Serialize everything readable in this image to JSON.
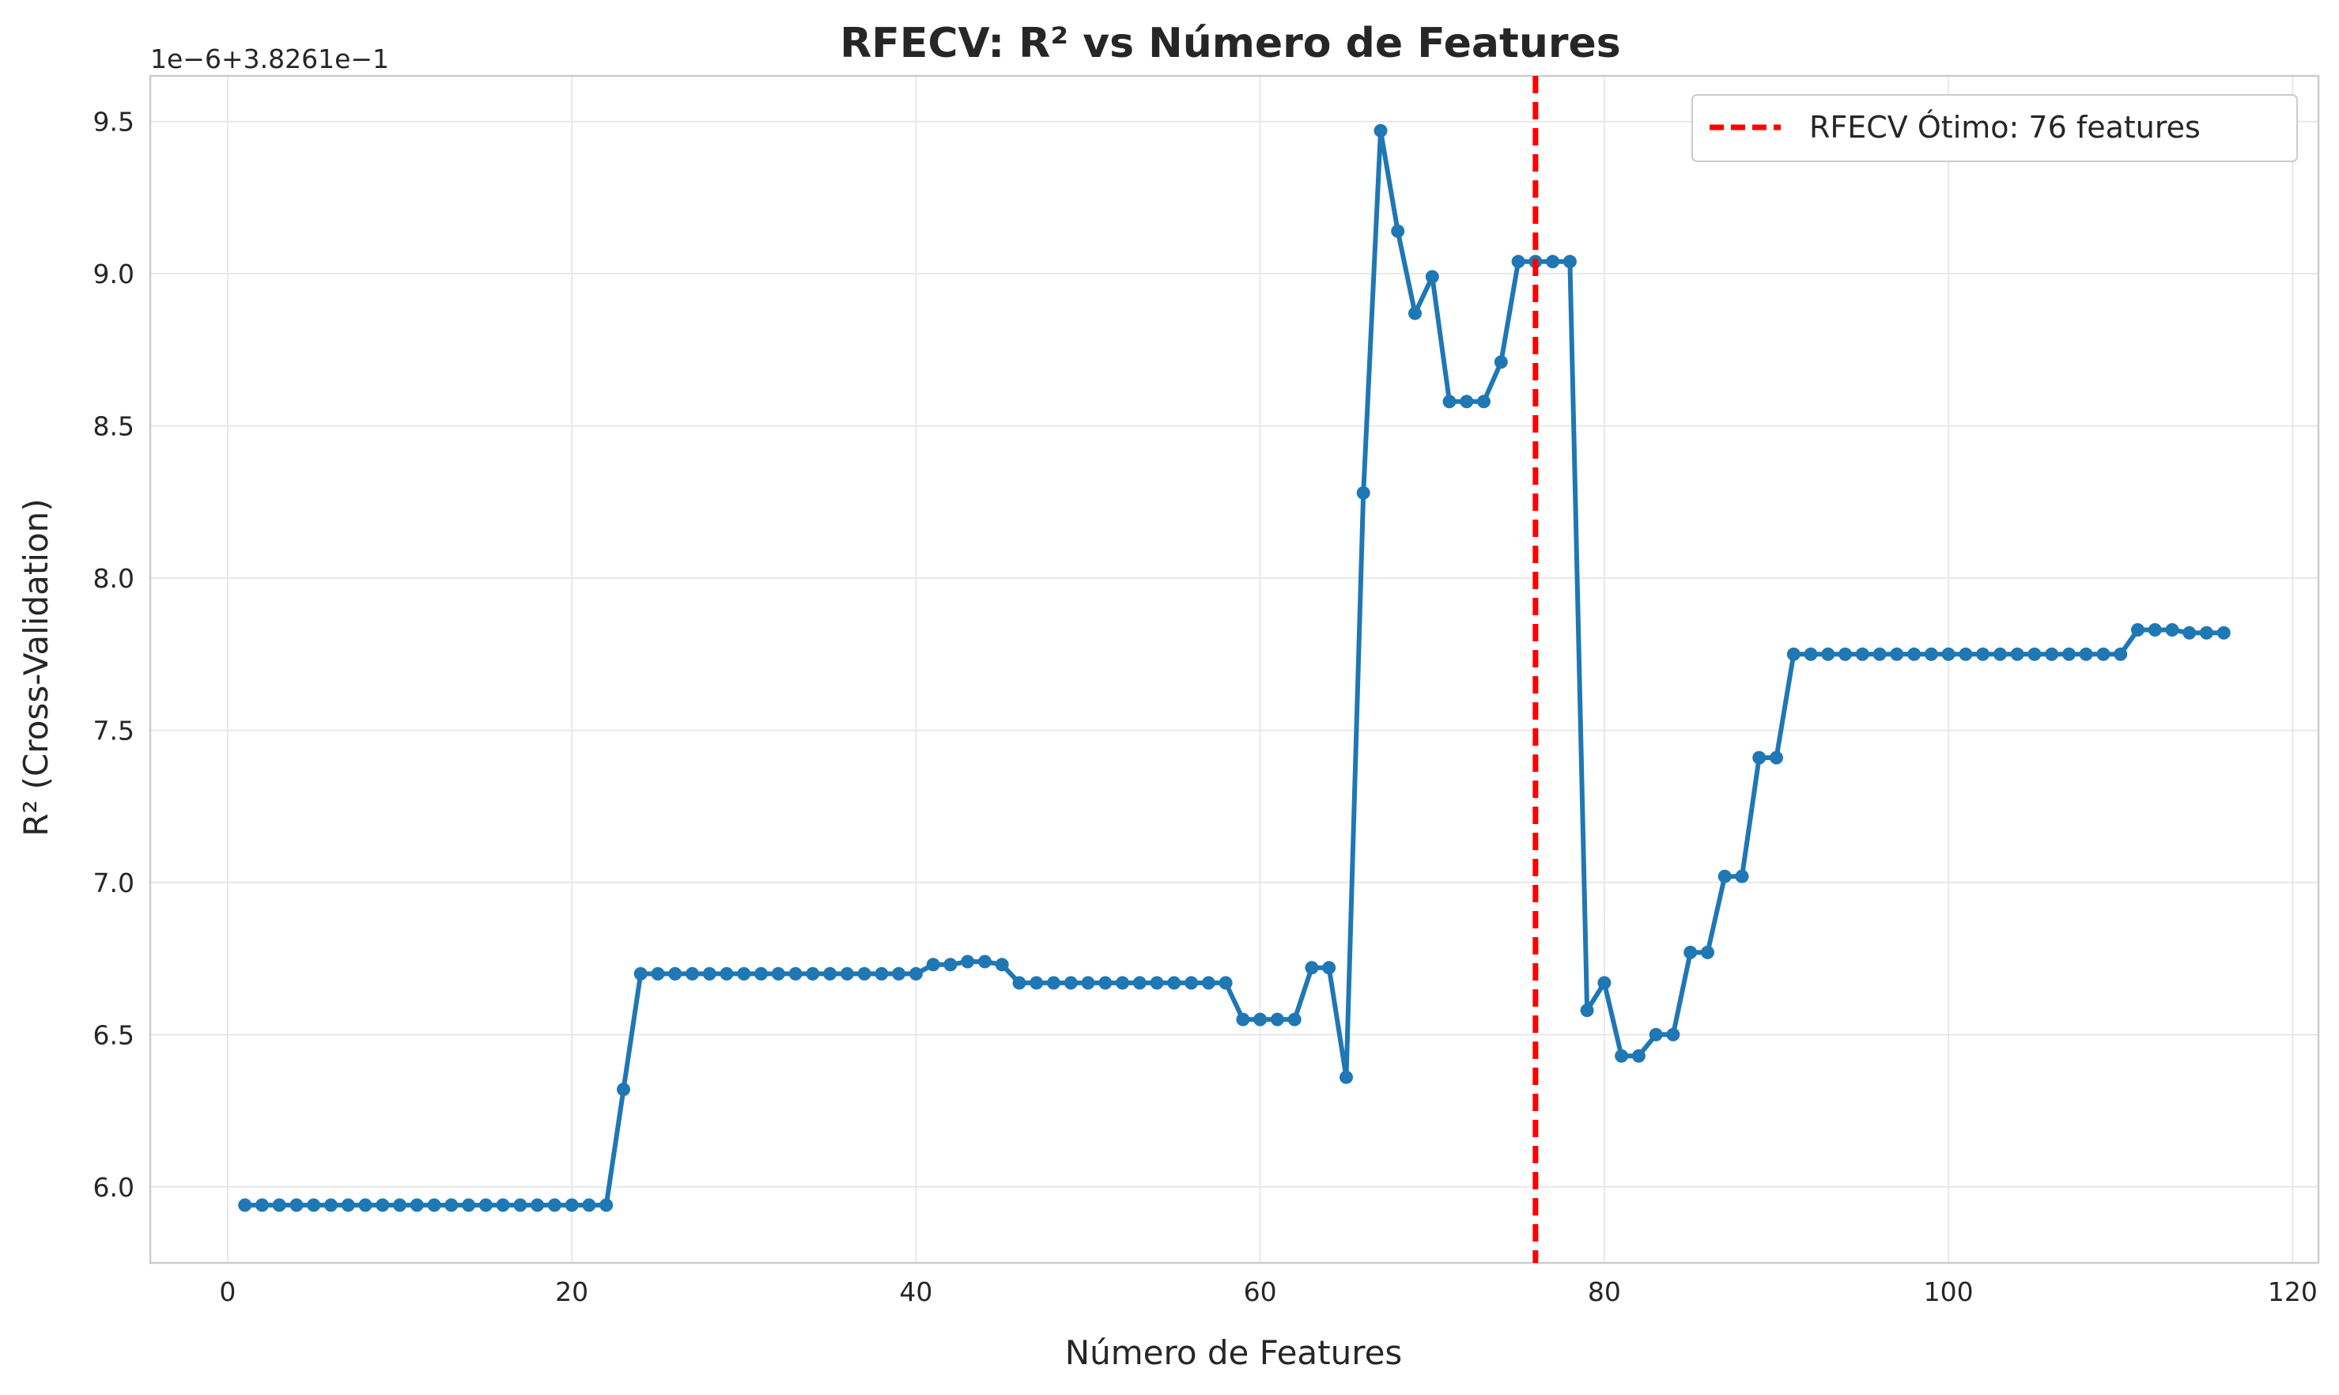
{
  "chart_data": {
    "type": "line",
    "title": "RFECV: R² vs Número de Features",
    "xlabel": "Número de Features",
    "ylabel": "R² (Cross-Validation)",
    "y_offset_label": "1e−6+3.8261e−1",
    "xlim": [
      -4.5,
      121.5
    ],
    "ylim": [
      5.75,
      9.65
    ],
    "xticks": [
      0,
      20,
      40,
      60,
      80,
      100,
      120
    ],
    "xtick_labels": [
      "0",
      "20",
      "40",
      "60",
      "80",
      "100",
      "120"
    ],
    "yticks": [
      6.0,
      6.5,
      7.0,
      7.5,
      8.0,
      8.5,
      9.0,
      9.5
    ],
    "ytick_labels": [
      "6.0",
      "6.5",
      "7.0",
      "7.5",
      "8.0",
      "8.5",
      "9.0",
      "9.5"
    ],
    "grid": true,
    "legend_position": "top-right",
    "colors": {
      "line": "#1f77b4",
      "optimal": "#ff0000"
    },
    "series": [
      {
        "x": [
          1,
          2,
          3,
          4,
          5,
          6,
          7,
          8,
          9,
          10,
          11,
          12,
          13,
          14,
          15,
          16,
          17,
          18,
          19,
          20,
          21,
          22,
          23,
          24,
          25,
          26,
          27,
          28,
          29,
          30,
          31,
          32,
          33,
          34,
          35,
          36,
          37,
          38,
          39,
          40,
          41,
          42,
          43,
          44,
          45,
          46,
          47,
          48,
          49,
          50,
          51,
          52,
          53,
          54,
          55,
          56,
          57,
          58,
          59,
          60,
          61,
          62,
          63,
          64,
          65,
          66,
          67,
          68,
          69,
          70,
          71,
          72,
          73,
          74,
          75,
          76,
          77,
          78,
          79,
          80,
          81,
          82,
          83,
          84,
          85,
          86,
          87,
          88,
          89,
          90,
          91,
          92,
          93,
          94,
          95,
          96,
          97,
          98,
          99,
          100,
          101,
          102,
          103,
          104,
          105,
          106,
          107,
          108,
          109,
          110,
          111,
          112,
          113,
          114,
          115,
          116
        ],
        "values": [
          5.94,
          5.94,
          5.94,
          5.94,
          5.94,
          5.94,
          5.94,
          5.94,
          5.94,
          5.94,
          5.94,
          5.94,
          5.94,
          5.94,
          5.94,
          5.94,
          5.94,
          5.94,
          5.94,
          5.94,
          5.94,
          5.94,
          6.32,
          6.7,
          6.7,
          6.7,
          6.7,
          6.7,
          6.7,
          6.7,
          6.7,
          6.7,
          6.7,
          6.7,
          6.7,
          6.7,
          6.7,
          6.7,
          6.7,
          6.7,
          6.73,
          6.73,
          6.74,
          6.74,
          6.73,
          6.67,
          6.67,
          6.67,
          6.67,
          6.67,
          6.67,
          6.67,
          6.67,
          6.67,
          6.67,
          6.67,
          6.67,
          6.67,
          6.55,
          6.55,
          6.55,
          6.55,
          6.72,
          6.72,
          6.36,
          8.28,
          9.47,
          9.14,
          8.87,
          8.99,
          8.58,
          8.58,
          8.58,
          8.71,
          9.04,
          9.04,
          9.04,
          9.04,
          6.58,
          6.67,
          6.43,
          6.43,
          6.5,
          6.5,
          6.77,
          6.77,
          7.02,
          7.02,
          7.41,
          7.41,
          7.75,
          7.75,
          7.75,
          7.75,
          7.75,
          7.75,
          7.75,
          7.75,
          7.75,
          7.75,
          7.75,
          7.75,
          7.75,
          7.75,
          7.75,
          7.75,
          7.75,
          7.75,
          7.75,
          7.75,
          7.83,
          7.83,
          7.83,
          7.82,
          7.82,
          7.82
        ]
      }
    ],
    "optimal_line": {
      "x": 76,
      "label": "RFECV Ótimo: 76 features"
    }
  }
}
